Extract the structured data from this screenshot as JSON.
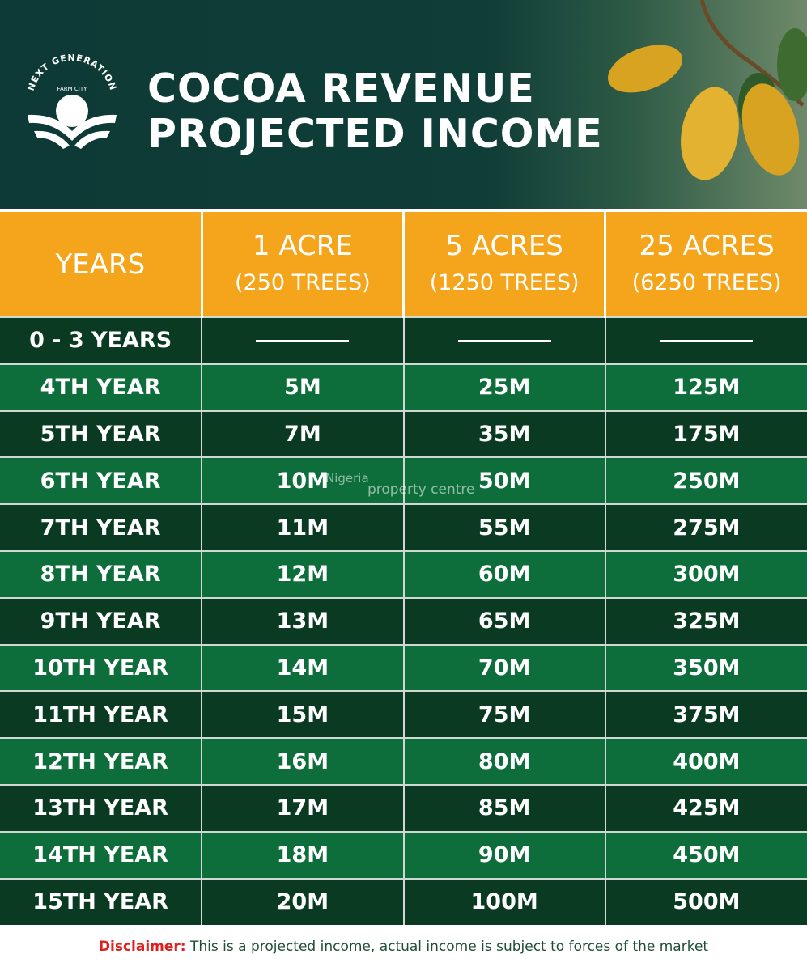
{
  "header": {
    "logo_text_top": "NEXT GENERATION",
    "logo_text_sub": "FARM CITY",
    "title_line1": "COCOA REVENUE",
    "title_line2": "PROJECTED INCOME"
  },
  "table": {
    "columns": [
      {
        "l1": "YEARS",
        "l2": ""
      },
      {
        "l1": "1 ACRE",
        "l2": "(250 TREES)"
      },
      {
        "l1": "5 ACRES",
        "l2": "(1250 TREES)"
      },
      {
        "l1": "25 ACRES",
        "l2": "(6250 TREES)"
      }
    ],
    "rows": [
      [
        "0 - 3 YEARS",
        "—",
        "—",
        "—"
      ],
      [
        "4TH YEAR",
        "5M",
        "25M",
        "125M"
      ],
      [
        "5TH YEAR",
        "7M",
        "35M",
        "175M"
      ],
      [
        "6TH YEAR",
        "10M",
        "50M",
        "250M"
      ],
      [
        "7TH YEAR",
        "11M",
        "55M",
        "275M"
      ],
      [
        "8TH YEAR",
        "12M",
        "60M",
        "300M"
      ],
      [
        "9TH YEAR",
        "13M",
        "65M",
        "325M"
      ],
      [
        "10TH YEAR",
        "14M",
        "70M",
        "350M"
      ],
      [
        "11TH YEAR",
        "15M",
        "75M",
        "375M"
      ],
      [
        "12TH YEAR",
        "16M",
        "80M",
        "400M"
      ],
      [
        "13TH YEAR",
        "17M",
        "85M",
        "425M"
      ],
      [
        "14TH YEAR",
        "18M",
        "90M",
        "450M"
      ],
      [
        "15TH YEAR",
        "20M",
        "100M",
        "500M"
      ]
    ]
  },
  "watermark": {
    "line1": "Nigeria",
    "line2": "property centre"
  },
  "disclaimer": {
    "label": "Disclaimer:",
    "text": " This is a projected income, actual income is subject to forces of the market"
  },
  "colors": {
    "header_bg": "#0d3a36",
    "orange": "#f5a51c",
    "row_dark": "#0b3a23",
    "row_green": "#0d6e3b",
    "disclaimer_red": "#e0201e"
  }
}
